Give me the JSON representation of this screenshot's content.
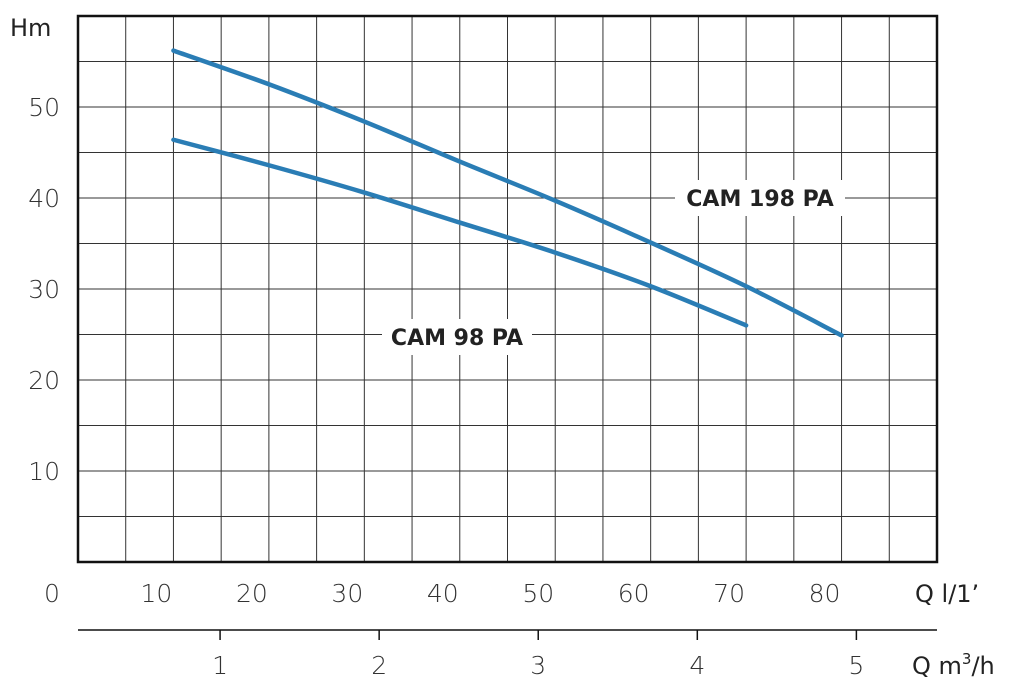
{
  "chart_data": {
    "type": "line",
    "ylabel": "Hm",
    "xlabel": "Q l/1’",
    "x2label": "Q m³/h",
    "xlim": [
      0,
      90
    ],
    "ylim": [
      0,
      60
    ],
    "x_ticks": [
      0,
      10,
      20,
      30,
      40,
      50,
      60,
      70,
      80
    ],
    "y_ticks": [
      10,
      20,
      30,
      40,
      50
    ],
    "x2_ticks": [
      1,
      2,
      3,
      4,
      5
    ],
    "x2_factor_lpm_per_m3h": 16.667,
    "grid": true,
    "line_color": "#2a7db5",
    "series": [
      {
        "name": "CAM 198 PA",
        "x": [
          10,
          20,
          30,
          40,
          50,
          60,
          70,
          80
        ],
        "y": [
          56.2,
          52.5,
          48.4,
          44.0,
          39.7,
          35.1,
          30.3,
          24.9
        ]
      },
      {
        "name": "CAM 98 PA",
        "x": [
          10,
          20,
          30,
          40,
          50,
          60,
          70
        ],
        "y": [
          46.4,
          43.6,
          40.6,
          37.3,
          34.0,
          30.3,
          26.0
        ]
      }
    ]
  }
}
